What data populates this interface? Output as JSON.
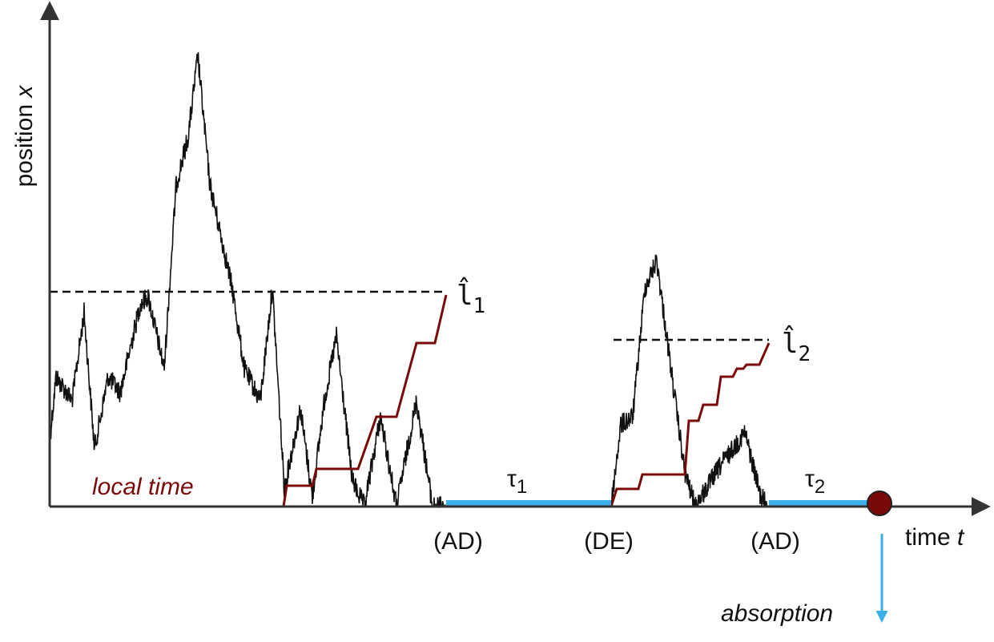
{
  "axes": {
    "y_label": "position",
    "y_var": "x",
    "x_label": "time",
    "x_var": "t"
  },
  "local_time": "local time",
  "phases": [
    "(AD)",
    "(DE)",
    "(AD)"
  ],
  "durations": [
    {
      "symbol": "τ",
      "index": "1"
    },
    {
      "symbol": "τ",
      "index": "2"
    }
  ],
  "thresholds": [
    {
      "symbol": "l̂",
      "index": "1"
    },
    {
      "symbol": "l̂",
      "index": "2"
    }
  ],
  "absorption": "absorption"
}
